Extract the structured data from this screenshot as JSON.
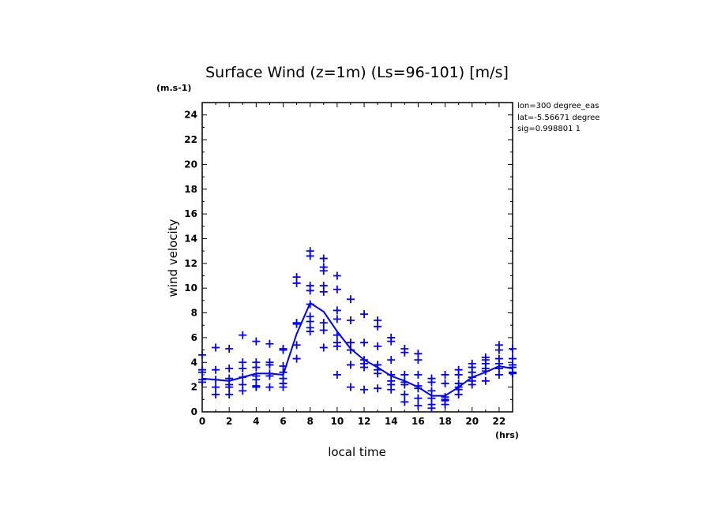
{
  "chart_data": {
    "type": "scatter",
    "title": "Surface Wind (z=1m) (Ls=96-101) [m/s]",
    "units_label": "(m.s-1)",
    "xlabel": "local time",
    "x_units": "(hrs)",
    "ylabel": "wind velocity",
    "xlim": [
      0,
      23
    ],
    "ylim": [
      0,
      25
    ],
    "x_ticks": [
      "0",
      "2",
      "4",
      "6",
      "8",
      "10",
      "12",
      "14",
      "16",
      "18",
      "20",
      "22"
    ],
    "y_ticks": [
      "0",
      "2",
      "4",
      "6",
      "8",
      "10",
      "12",
      "14",
      "16",
      "18",
      "20",
      "22",
      "24"
    ],
    "annotations": [
      "lon=300 degree_eas",
      "lat=-5.56671 degree",
      "sig=0.998801 1"
    ],
    "colors": {
      "data": "#0000ff",
      "axes": "#000000"
    },
    "series": [
      {
        "type": "scatter",
        "marker": "plus",
        "x": [
          0,
          0,
          0,
          0,
          0,
          1,
          1,
          1,
          1,
          1,
          2,
          2,
          2,
          2,
          2,
          2,
          3,
          3,
          3,
          3,
          3,
          3,
          4,
          4,
          4,
          4,
          4,
          4,
          4,
          5,
          5,
          5,
          5,
          5,
          5,
          6,
          6,
          6,
          6,
          6,
          6,
          6,
          7,
          7,
          7,
          7,
          7,
          7,
          8,
          8,
          8,
          8,
          8,
          8,
          8,
          8,
          8,
          9,
          9,
          9,
          9,
          9,
          9,
          9,
          9,
          10,
          10,
          10,
          10,
          10,
          10,
          10,
          10,
          11,
          11,
          11,
          11,
          11,
          11,
          12,
          12,
          12,
          12,
          12,
          12,
          13,
          13,
          13,
          13,
          13,
          13,
          13,
          14,
          14,
          14,
          14,
          14,
          14,
          14,
          15,
          15,
          15,
          15,
          15,
          15,
          15,
          16,
          16,
          16,
          16,
          16,
          16,
          16,
          17,
          17,
          17,
          17,
          17,
          17,
          18,
          18,
          18,
          18,
          18,
          18,
          19,
          19,
          19,
          19,
          19,
          19,
          20,
          20,
          20,
          20,
          20,
          20,
          21,
          21,
          21,
          21,
          21,
          21,
          22,
          22,
          22,
          22,
          22,
          22,
          23,
          23,
          23,
          23,
          23,
          23
        ],
        "y": [
          4.6,
          3.4,
          3.2,
          2.6,
          2.4,
          5.2,
          3.4,
          2.6,
          2.0,
          1.4,
          5.1,
          3.5,
          2.7,
          2.2,
          2.0,
          1.4,
          6.2,
          4.0,
          3.5,
          2.8,
          2.2,
          1.7,
          5.7,
          4.0,
          3.6,
          2.9,
          2.6,
          2.1,
          2.0,
          5.5,
          4.0,
          3.8,
          3.1,
          2.9,
          2.0,
          5.1,
          5.0,
          3.7,
          3.2,
          2.7,
          2.3,
          2.0,
          10.9,
          10.4,
          7.2,
          7.1,
          5.4,
          4.3,
          13.0,
          12.6,
          10.2,
          9.8,
          8.7,
          7.7,
          7.3,
          6.8,
          6.5,
          12.4,
          11.7,
          11.4,
          10.2,
          9.7,
          7.2,
          6.6,
          5.2,
          11.0,
          9.9,
          8.2,
          7.5,
          6.2,
          5.6,
          5.3,
          3.0,
          9.1,
          7.4,
          5.6,
          5.0,
          3.8,
          2.0,
          7.9,
          5.6,
          4.2,
          3.9,
          3.6,
          1.8,
          7.4,
          6.9,
          5.3,
          3.8,
          3.4,
          3.1,
          1.9,
          6.0,
          5.7,
          4.2,
          3.0,
          2.5,
          2.2,
          1.8,
          5.1,
          4.8,
          3.0,
          2.4,
          2.2,
          1.4,
          0.8,
          4.7,
          4.2,
          3.0,
          2.1,
          1.9,
          1.1,
          0.5,
          2.7,
          2.4,
          1.7,
          1.1,
          0.6,
          0.3,
          3.0,
          2.3,
          1.2,
          1.0,
          0.9,
          0.6,
          3.4,
          3.0,
          2.3,
          2.0,
          1.8,
          1.4,
          3.9,
          3.6,
          3.2,
          2.8,
          2.5,
          2.2,
          4.4,
          4.2,
          3.9,
          3.5,
          3.3,
          2.5,
          5.4,
          5.0,
          4.3,
          3.9,
          3.5,
          3.0,
          5.1,
          4.3,
          3.8,
          3.6,
          3.2,
          3.1
        ]
      },
      {
        "type": "line",
        "x": [
          0,
          1,
          2,
          3,
          4,
          5,
          6,
          7,
          8,
          9,
          10,
          11,
          12,
          13,
          14,
          15,
          16,
          17,
          18,
          19,
          20,
          21,
          22,
          23
        ],
        "y": [
          2.7,
          2.6,
          2.5,
          2.8,
          3.1,
          3.1,
          3.0,
          6.3,
          8.8,
          8.1,
          6.5,
          5.1,
          4.2,
          3.6,
          2.9,
          2.5,
          2.0,
          1.3,
          1.3,
          2.0,
          2.8,
          3.2,
          3.7,
          3.5
        ]
      }
    ]
  }
}
